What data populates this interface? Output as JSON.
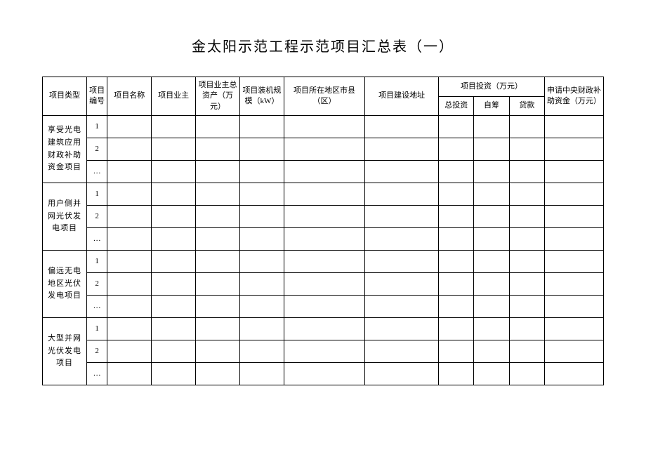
{
  "title": "金太阳示范工程示范项目汇总表（一）",
  "headers": {
    "type": "项目类型",
    "no": "项目编号",
    "name": "项目名称",
    "owner": "项目业主",
    "assets": "项目业主总资产（万元）",
    "size": "项目装机规模（kW）",
    "location": "项目所在地区市县（区）",
    "address": "项目建设地址",
    "invest_group": "项目投资（万元）",
    "invest_total": "总投资",
    "invest_self": "自筹",
    "invest_loan": "贷款",
    "subsidy": "申请中央财政补助资金（万元）"
  },
  "categories": [
    {
      "label": "享受光电建筑应用财政补助资金项目",
      "rows": [
        "1",
        "2",
        "…"
      ]
    },
    {
      "label": "用户侧并网光伏发电项目",
      "rows": [
        "1",
        "2",
        "…"
      ]
    },
    {
      "label": "偏远无电地区光伏发电项目",
      "rows": [
        "1",
        "2",
        "…"
      ]
    },
    {
      "label": "大型并网光伏发电项目",
      "rows": [
        "1",
        "2",
        "…"
      ]
    }
  ],
  "colors": {
    "page_bg": "#ffffff",
    "border": "#000000",
    "text": "#000000"
  }
}
